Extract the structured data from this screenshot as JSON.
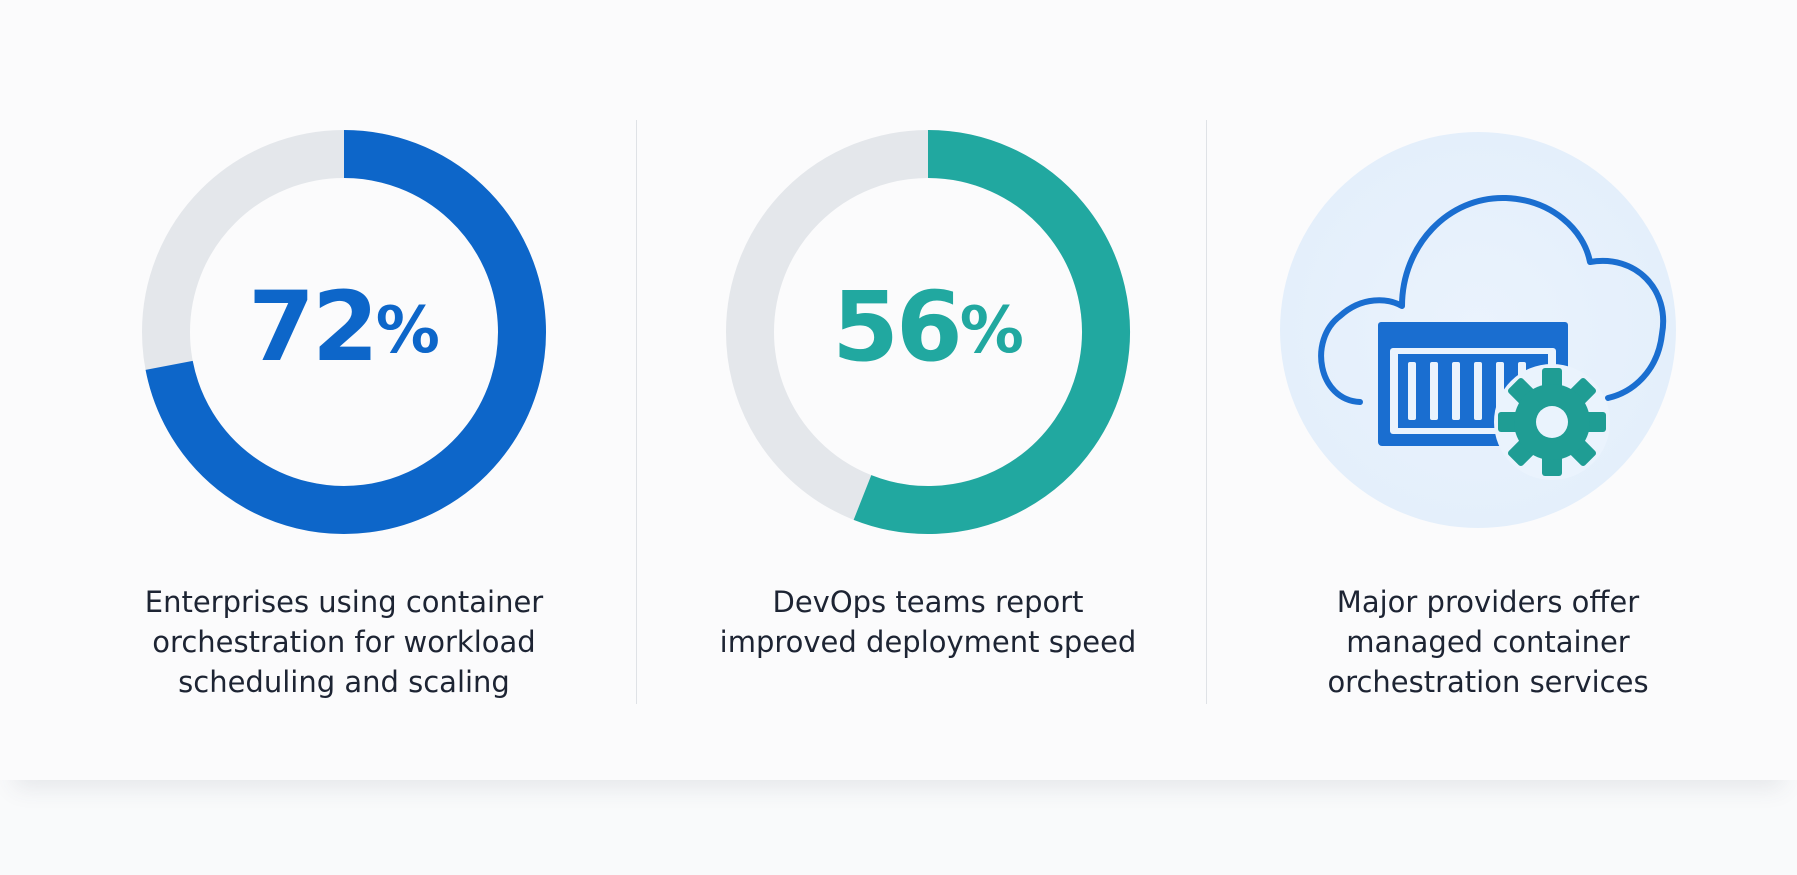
{
  "colors": {
    "blue": "#0d66c9",
    "teal": "#21a8a0",
    "track": "#e4e7eb",
    "text": "#1d2433",
    "icon_bg": "#e8f2fd"
  },
  "chart_data": [
    {
      "type": "pie",
      "value": 72,
      "max": 100,
      "color": "#0d66c9",
      "label": "72",
      "unit": "%",
      "caption_lines": [
        "Enterprises using container",
        "orchestration for workload",
        "scheduling and scaling"
      ]
    },
    {
      "type": "pie",
      "value": 56,
      "max": 100,
      "color": "#21a8a0",
      "label": "56",
      "unit": "%",
      "caption_lines": [
        "DevOps teams report",
        "improved deployment speed"
      ]
    }
  ],
  "feature": {
    "icon": "cloud-container-gear-icon",
    "caption_lines": [
      "Major providers offer",
      "managed container",
      "orchestration services"
    ]
  }
}
